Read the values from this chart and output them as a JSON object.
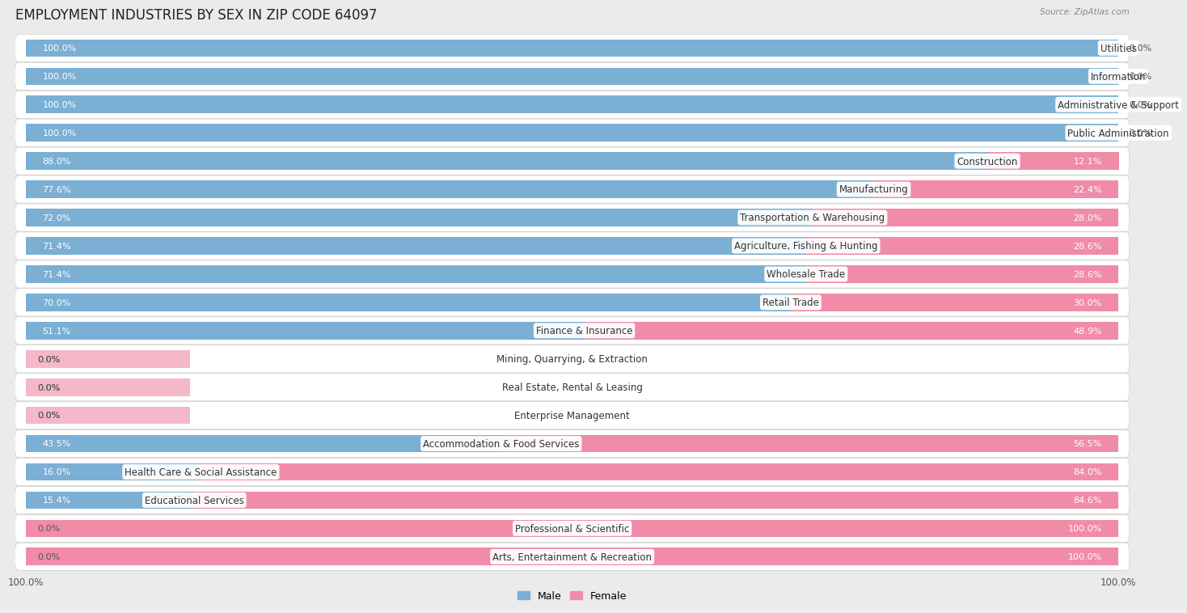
{
  "title": "EMPLOYMENT INDUSTRIES BY SEX IN ZIP CODE 64097",
  "source": "Source: ZipAtlas.com",
  "industries": [
    "Utilities",
    "Information",
    "Administrative & Support",
    "Public Administration",
    "Construction",
    "Manufacturing",
    "Transportation & Warehousing",
    "Agriculture, Fishing & Hunting",
    "Wholesale Trade",
    "Retail Trade",
    "Finance & Insurance",
    "Mining, Quarrying, & Extraction",
    "Real Estate, Rental & Leasing",
    "Enterprise Management",
    "Accommodation & Food Services",
    "Health Care & Social Assistance",
    "Educational Services",
    "Professional & Scientific",
    "Arts, Entertainment & Recreation"
  ],
  "male": [
    100.0,
    100.0,
    100.0,
    100.0,
    88.0,
    77.6,
    72.0,
    71.4,
    71.4,
    70.0,
    51.1,
    0.0,
    0.0,
    0.0,
    43.5,
    16.0,
    15.4,
    0.0,
    0.0
  ],
  "female": [
    0.0,
    0.0,
    0.0,
    0.0,
    12.1,
    22.4,
    28.0,
    28.6,
    28.6,
    30.0,
    48.9,
    0.0,
    0.0,
    0.0,
    56.5,
    84.0,
    84.6,
    100.0,
    100.0
  ],
  "male_label_pcts": [
    "100.0%",
    "100.0%",
    "100.0%",
    "100.0%",
    "88.0%",
    "77.6%",
    "72.0%",
    "71.4%",
    "71.4%",
    "70.0%",
    "51.1%",
    "0.0%",
    "0.0%",
    "0.0%",
    "43.5%",
    "16.0%",
    "15.4%",
    "0.0%",
    "0.0%"
  ],
  "female_label_pcts": [
    "0.0%",
    "0.0%",
    "0.0%",
    "0.0%",
    "12.1%",
    "22.4%",
    "28.0%",
    "28.6%",
    "28.6%",
    "30.0%",
    "48.9%",
    "0.0%",
    "0.0%",
    "0.0%",
    "56.5%",
    "84.0%",
    "84.6%",
    "100.0%",
    "100.0%"
  ],
  "male_color": "#7bafd4",
  "female_color": "#f08ca8",
  "male_color_light": "#aecde3",
  "female_color_light": "#f5b8c8",
  "background_color": "#ebebeb",
  "row_bg_color": "#ffffff",
  "title_fontsize": 12,
  "label_fontsize": 8.5,
  "value_fontsize": 8,
  "bar_height": 0.62
}
